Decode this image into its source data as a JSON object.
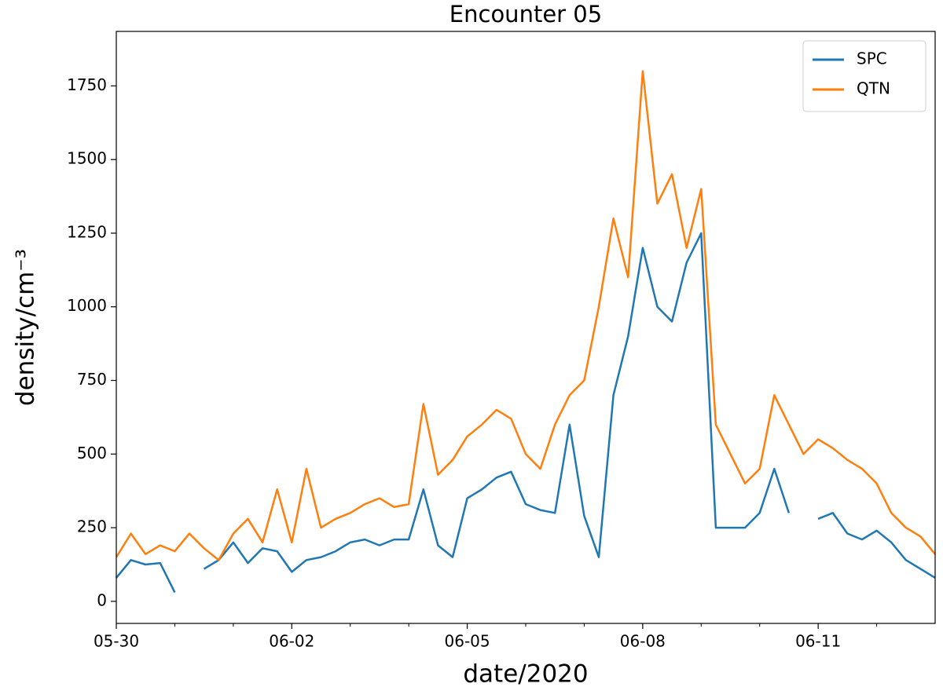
{
  "chart_data": {
    "type": "line",
    "title": "Encounter 05",
    "xlabel": "date/2020",
    "ylabel": "density/cm⁻³",
    "x": [
      0,
      0.25,
      0.5,
      0.75,
      1,
      1.25,
      1.5,
      1.75,
      2,
      2.25,
      2.5,
      2.75,
      3,
      3.25,
      3.5,
      3.75,
      4,
      4.25,
      4.5,
      4.75,
      5,
      5.25,
      5.5,
      5.75,
      6,
      6.25,
      6.5,
      6.75,
      7,
      7.25,
      7.5,
      7.75,
      8,
      8.25,
      8.5,
      8.75,
      9,
      9.25,
      9.5,
      9.75,
      10,
      10.25,
      10.5,
      10.75,
      11,
      11.25,
      11.5,
      11.75,
      12,
      12.25,
      12.5,
      12.75,
      13,
      13.25,
      13.5,
      13.75,
      14
    ],
    "series": [
      {
        "name": "SPC",
        "color": "#1f77b4",
        "values": [
          80,
          140,
          125,
          130,
          30,
          null,
          110,
          140,
          200,
          130,
          180,
          170,
          100,
          140,
          150,
          170,
          200,
          210,
          190,
          210,
          210,
          380,
          190,
          150,
          350,
          380,
          420,
          440,
          330,
          310,
          300,
          600,
          290,
          150,
          700,
          900,
          1200,
          1000,
          950,
          1150,
          1250,
          250,
          250,
          250,
          300,
          450,
          300,
          null,
          280,
          300,
          230,
          210,
          240,
          200,
          140,
          110,
          80
        ]
      },
      {
        "name": "QTN",
        "color": "#ff7f0e",
        "values": [
          150,
          230,
          160,
          190,
          170,
          230,
          180,
          140,
          230,
          280,
          200,
          380,
          200,
          450,
          250,
          280,
          300,
          330,
          350,
          320,
          330,
          670,
          430,
          480,
          560,
          600,
          650,
          620,
          500,
          450,
          600,
          700,
          750,
          1000,
          1300,
          1100,
          1800,
          1350,
          1450,
          1200,
          1400,
          600,
          500,
          400,
          450,
          700,
          600,
          500,
          550,
          520,
          480,
          450,
          400,
          300,
          250,
          220,
          160
        ]
      }
    ],
    "xlim": [
      0,
      14
    ],
    "xticks": [
      {
        "value": 0,
        "label": "05-30"
      },
      {
        "value": 3,
        "label": "06-02"
      },
      {
        "value": 6,
        "label": "06-05"
      },
      {
        "value": 9,
        "label": "06-08"
      },
      {
        "value": 12,
        "label": "06-11"
      }
    ],
    "xminor": [
      1,
      2,
      4,
      5,
      7,
      8,
      10,
      11,
      13
    ],
    "ylim": [
      -75,
      1935
    ],
    "yticks": [
      0,
      250,
      500,
      750,
      1000,
      1250,
      1500,
      1750
    ],
    "legend": "upper right"
  }
}
